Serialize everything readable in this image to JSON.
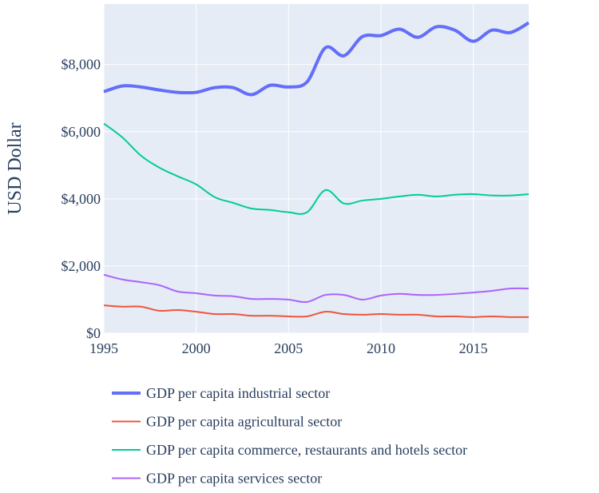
{
  "chart_data": {
    "type": "line",
    "y_label": "USD Dollar",
    "x": [
      1995,
      1996,
      1997,
      1998,
      1999,
      2000,
      2001,
      2002,
      2003,
      2004,
      2005,
      2006,
      2007,
      2008,
      2009,
      2010,
      2011,
      2012,
      2013,
      2014,
      2015,
      2016,
      2017,
      2018
    ],
    "xlim": [
      1995,
      2018
    ],
    "xticks": [
      1995,
      2000,
      2005,
      2010,
      2015
    ],
    "ylim": [
      0,
      9800
    ],
    "yticks": [
      {
        "value": 0,
        "label": "$0"
      },
      {
        "value": 2000,
        "label": "$2,000"
      },
      {
        "value": 4000,
        "label": "$4,000"
      },
      {
        "value": 6000,
        "label": "$6,000"
      },
      {
        "value": 8000,
        "label": "$8,000"
      }
    ],
    "grid": true,
    "legend": "bottom",
    "series": [
      {
        "name": "GDP per capita industrial sector",
        "color": "#636efa",
        "line_width": 4,
        "values": [
          7190,
          7360,
          7330,
          7240,
          7170,
          7170,
          7310,
          7310,
          7100,
          7380,
          7330,
          7480,
          8500,
          8260,
          8830,
          8860,
          9050,
          8810,
          9120,
          9020,
          8690,
          9020,
          8950,
          9240
        ]
      },
      {
        "name": "GDP per capita agricultural sector",
        "color": "#ef553b",
        "line_width": 2,
        "values": [
          830,
          790,
          790,
          670,
          690,
          640,
          570,
          570,
          520,
          520,
          500,
          500,
          640,
          570,
          550,
          570,
          550,
          550,
          500,
          500,
          480,
          500,
          480,
          480
        ]
      },
      {
        "name": "GDP per capita commerce, restaurants and hotels sector",
        "color": "#00cc96",
        "line_width": 2,
        "values": [
          6240,
          5830,
          5290,
          4930,
          4670,
          4430,
          4050,
          3880,
          3710,
          3670,
          3600,
          3600,
          4260,
          3860,
          3950,
          4000,
          4070,
          4120,
          4070,
          4120,
          4140,
          4100,
          4100,
          4140
        ]
      },
      {
        "name": "GDP per capita services sector",
        "color": "#ab63fa",
        "line_width": 2,
        "values": [
          1740,
          1600,
          1520,
          1430,
          1240,
          1190,
          1120,
          1100,
          1020,
          1020,
          1000,
          930,
          1140,
          1140,
          1000,
          1120,
          1170,
          1140,
          1140,
          1170,
          1210,
          1260,
          1330,
          1330
        ]
      }
    ]
  }
}
